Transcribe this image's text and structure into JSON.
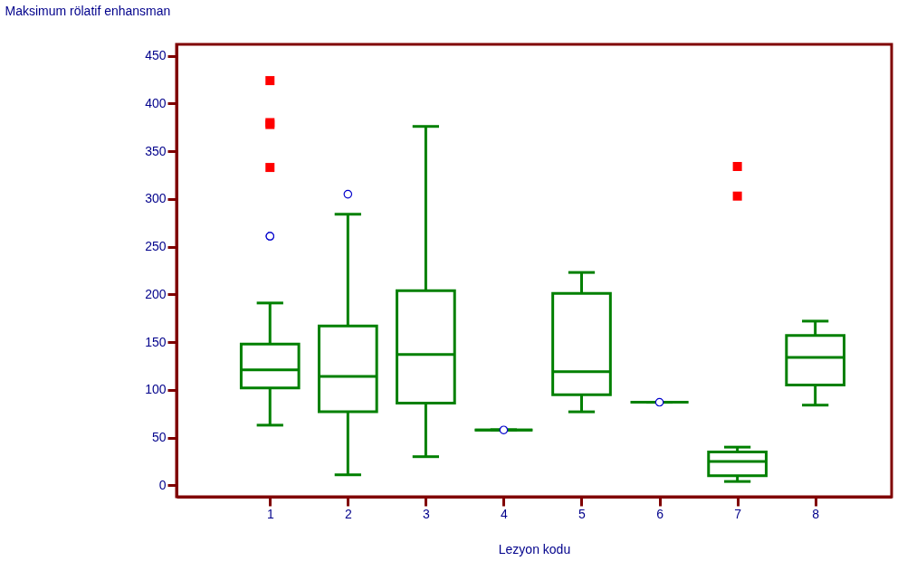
{
  "chart_data": {
    "type": "box",
    "xlabel": "Lezyon kodu",
    "ylabel": "Maksimum rölatif enhansman",
    "categories": [
      "1",
      "2",
      "3",
      "4",
      "5",
      "6",
      "7",
      "8"
    ],
    "color": "#008000",
    "boxes": [
      {
        "low": 63,
        "q1": 102,
        "median": 121,
        "q3": 148,
        "high": 191,
        "outliers": [
          261,
          261
        ]
      },
      {
        "low": 11,
        "q1": 77,
        "median": 114,
        "q3": 167,
        "high": 284,
        "outliers": [
          305
        ]
      },
      {
        "low": 30,
        "q1": 86,
        "median": 137,
        "q3": 204,
        "high": 376
      },
      {
        "low": 58,
        "q1": 58,
        "median": 58,
        "q3": 58,
        "high": 58,
        "outliers": [
          58
        ]
      },
      {
        "low": 77,
        "q1": 95,
        "median": 119,
        "q3": 201,
        "high": 223
      },
      {
        "low": 87,
        "q1": 87,
        "median": 87,
        "q3": 87,
        "high": 87,
        "outliers": [
          87
        ]
      },
      {
        "low": 4,
        "q1": 10,
        "median": 25,
        "q3": 35,
        "high": 40
      },
      {
        "low": 84,
        "q1": 105,
        "median": 134,
        "q3": 157,
        "high": 172
      }
    ],
    "series": [
      {
        "type": "scatter",
        "color": "#ff0000",
        "marker": "square",
        "x": [
          "1",
          "1",
          "1",
          "1",
          "7",
          "7"
        ],
        "values": [
          424,
          378,
          380,
          333,
          334,
          303
        ]
      }
    ],
    "ylim": [
      -12,
      462
    ],
    "yticks": [
      0,
      50,
      100,
      150,
      200,
      250,
      300,
      350,
      400,
      450
    ]
  }
}
